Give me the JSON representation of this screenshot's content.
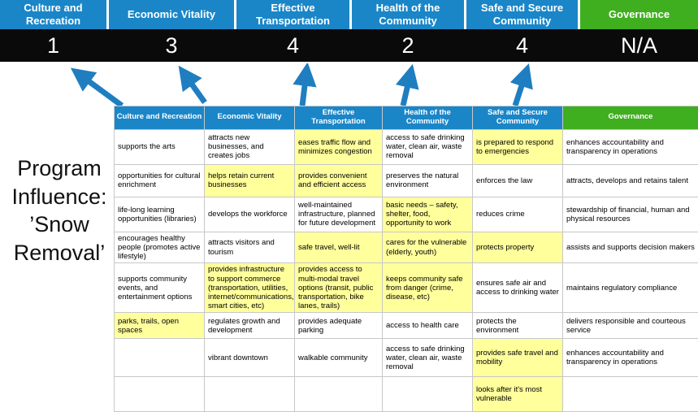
{
  "program_label": "Program Influence: ’Snow Removal’",
  "colors": {
    "category_blue": "#1a86c8",
    "governance_green": "#3fae1f",
    "score_background": "#0a0a0a",
    "highlight_yellow": "#ffff9c",
    "arrow_blue": "#1f7ec0"
  },
  "scorecard": {
    "categories": [
      {
        "label": "Culture and Recreation",
        "score": "1",
        "color": "blue"
      },
      {
        "label": "Economic Vitality",
        "score": "3",
        "color": "blue"
      },
      {
        "label": "Effective Transportation",
        "score": "4",
        "color": "blue"
      },
      {
        "label": "Health of the Community",
        "score": "2",
        "color": "blue"
      },
      {
        "label": "Safe and Secure Community",
        "score": "4",
        "color": "blue"
      },
      {
        "label": "Governance",
        "score": "N/A",
        "color": "green"
      }
    ]
  },
  "table": {
    "headers": [
      {
        "label": "Culture and Recreation",
        "color": "blue"
      },
      {
        "label": "Economic Vitality",
        "color": "blue"
      },
      {
        "label": "Effective Transportation",
        "color": "blue"
      },
      {
        "label": "Health of the Community",
        "color": "blue"
      },
      {
        "label": "Safe and Secure Community",
        "color": "blue"
      },
      {
        "label": "Governance",
        "color": "green"
      }
    ],
    "rows": [
      [
        {
          "text": "supports the arts",
          "highlight": false
        },
        {
          "text": "attracts new businesses, and creates jobs",
          "highlight": false
        },
        {
          "text": "eases traffic flow and minimizes congestion",
          "highlight": true
        },
        {
          "text": "access to safe drinking water, clean air, waste removal",
          "highlight": false
        },
        {
          "text": "is prepared to respond to emergencies",
          "highlight": true
        },
        {
          "text": "enhances accountability and transparency in operations",
          "highlight": false
        }
      ],
      [
        {
          "text": "opportunities for cultural enrichment",
          "highlight": false
        },
        {
          "text": "helps retain current businesses",
          "highlight": true
        },
        {
          "text": "provides convenient and efficient access",
          "highlight": true
        },
        {
          "text": "preserves the natural environment",
          "highlight": false
        },
        {
          "text": "enforces the law",
          "highlight": false
        },
        {
          "text": "attracts, develops and retains talent",
          "highlight": false
        }
      ],
      [
        {
          "text": "life-long learning opportunities (libraries)",
          "highlight": false
        },
        {
          "text": "develops the workforce",
          "highlight": false
        },
        {
          "text": "well-maintained infrastructure, planned for future development",
          "highlight": false
        },
        {
          "text": "basic needs – safety, shelter, food, opportunity to work",
          "highlight": true
        },
        {
          "text": "reduces crime",
          "highlight": false
        },
        {
          "text": "stewardship of financial, human and physical resources",
          "highlight": false
        }
      ],
      [
        {
          "text": "encourages healthy people (promotes active lifestyle)",
          "highlight": false
        },
        {
          "text": "attracts visitors and tourism",
          "highlight": false
        },
        {
          "text": "safe travel, well-lit",
          "highlight": true
        },
        {
          "text": "cares for the vulnerable (elderly, youth)",
          "highlight": true
        },
        {
          "text": "protects property",
          "highlight": true
        },
        {
          "text": "assists and supports decision makers",
          "highlight": false
        }
      ],
      [
        {
          "text": "supports community events, and entertainment options",
          "highlight": false
        },
        {
          "text": "provides infrastructure to support commerce (transportation, utilities, internet/communications, smart cities, etc)",
          "highlight": true
        },
        {
          "text": "provides access to multi-modal travel options (transit, public transportation, bike lanes, trails)",
          "highlight": true
        },
        {
          "text": "keeps community safe from danger (crime, disease, etc)",
          "highlight": true
        },
        {
          "text": "ensures safe air and access to drinking water",
          "highlight": false
        },
        {
          "text": "maintains regulatory compliance",
          "highlight": false
        }
      ],
      [
        {
          "text": "parks, trails, open spaces",
          "highlight": true
        },
        {
          "text": "regulates growth and development",
          "highlight": false
        },
        {
          "text": "provides adequate parking",
          "highlight": false
        },
        {
          "text": "access to health care",
          "highlight": false
        },
        {
          "text": "protects the environment",
          "highlight": false
        },
        {
          "text": "delivers responsible and courteous service",
          "highlight": false
        }
      ],
      [
        {
          "text": "",
          "highlight": false
        },
        {
          "text": "vibrant downtown",
          "highlight": false
        },
        {
          "text": "walkable community",
          "highlight": false
        },
        {
          "text": "access to safe drinking water, clean air, waste removal",
          "highlight": false
        },
        {
          "text": "provides safe travel and mobility",
          "highlight": true
        },
        {
          "text": "enhances accountability and transparency in operations",
          "highlight": false
        }
      ],
      [
        {
          "text": "",
          "highlight": false
        },
        {
          "text": "",
          "highlight": false
        },
        {
          "text": "",
          "highlight": false
        },
        {
          "text": "",
          "highlight": false
        },
        {
          "text": "looks after it's most vulnerable",
          "highlight": true
        },
        {
          "text": "",
          "highlight": false
        }
      ]
    ]
  }
}
